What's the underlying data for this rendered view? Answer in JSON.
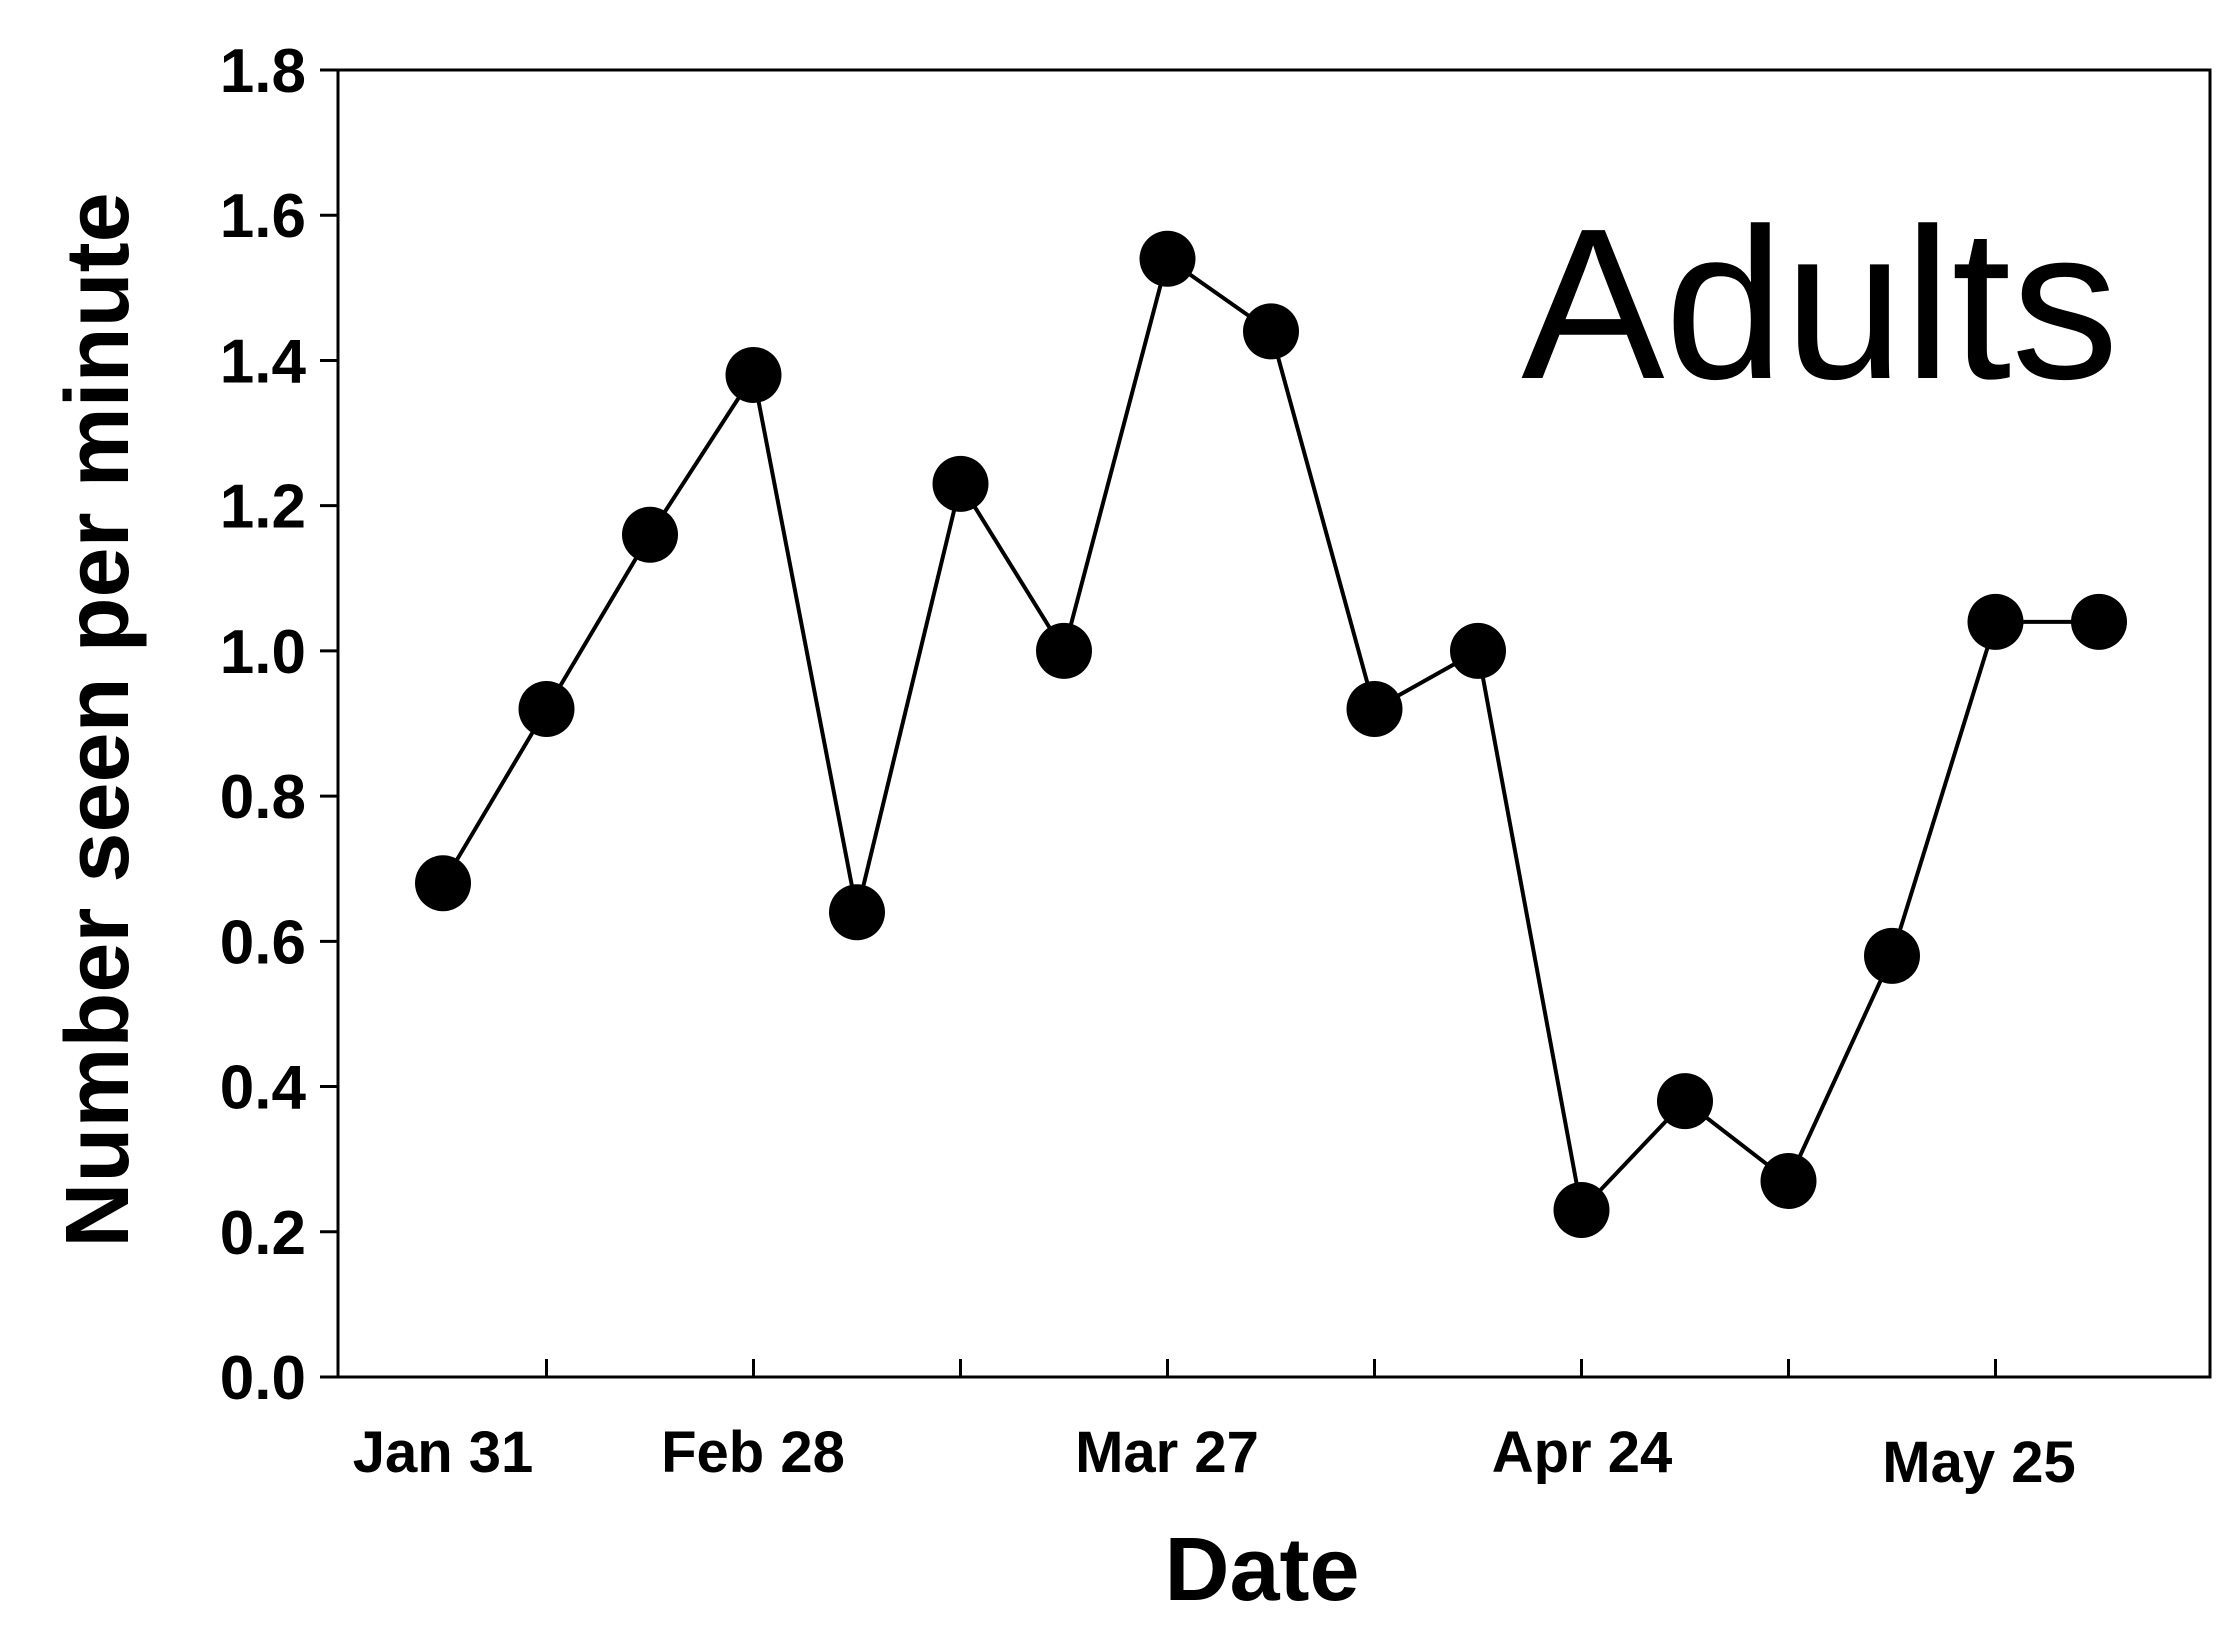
{
  "chart_data": {
    "type": "line",
    "annotation": "Adults",
    "xlabel": "Date",
    "ylabel": "Number seen per minute",
    "ylim": [
      0,
      1.8
    ],
    "y_ticks": [
      "0.0",
      "0.2",
      "0.4",
      "0.6",
      "0.8",
      "1.0",
      "1.2",
      "1.4",
      "1.6",
      "1.8"
    ],
    "x_tick_labels": [
      "Jan 31",
      "Feb 28",
      "Mar 27",
      "Apr 24",
      "May 25"
    ],
    "grid": false,
    "legend": "none",
    "series": [
      {
        "color": "#000000",
        "values": [
          0.68,
          0.92,
          1.16,
          1.38,
          0.64,
          1.23,
          1.0,
          1.54,
          1.44,
          0.92,
          1.0,
          0.23,
          0.38,
          0.27,
          0.58,
          1.04,
          1.04
        ]
      }
    ]
  }
}
